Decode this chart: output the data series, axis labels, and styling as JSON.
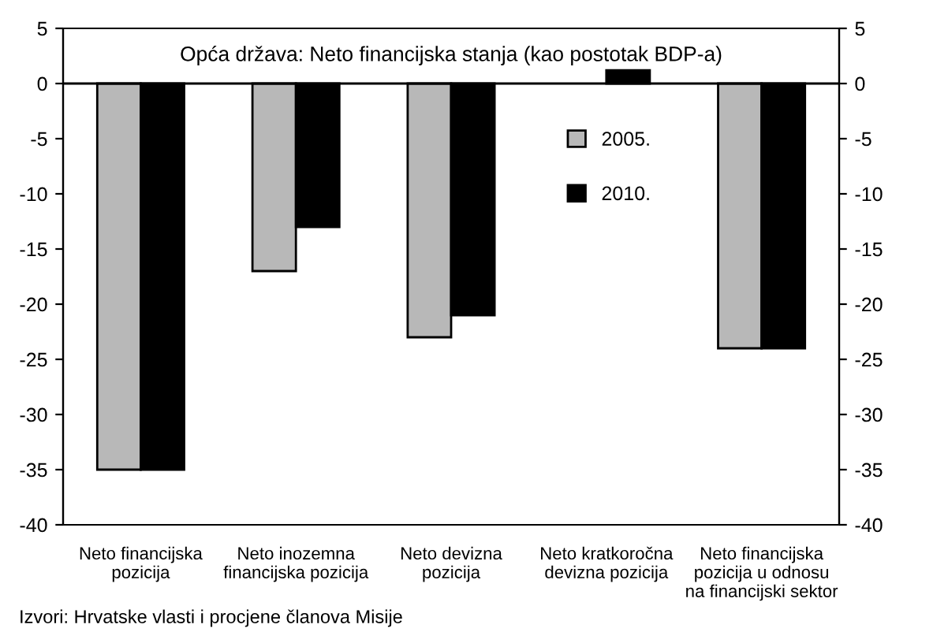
{
  "chart_data": {
    "type": "bar",
    "title": "Opća država: Neto financijska stanja (kao postotak BDP-a)",
    "categories": [
      "Neto financijska\npozicija",
      "Neto inozemna\nfinancijska pozicija",
      "Neto devizna\npozicija",
      "Neto kratkoročna\ndevizna pozicija",
      "Neto financijska\npozicija u odnosu\nna financijski sektor"
    ],
    "series": [
      {
        "name": "2005.",
        "color": "#b8b8b8",
        "values": [
          -35,
          -17,
          -23,
          null,
          -24
        ]
      },
      {
        "name": "2010.",
        "color": "#000000",
        "values": [
          -35,
          -13,
          -21,
          1.2,
          -24
        ]
      }
    ],
    "ylim": [
      -40,
      5
    ],
    "yticks": [
      -40,
      -35,
      -30,
      -25,
      -20,
      -15,
      -10,
      -5,
      0,
      5
    ],
    "y2lim": [
      -40,
      5
    ],
    "y2ticks": [
      -40,
      -35,
      -30,
      -25,
      -20,
      -15,
      -10,
      -5,
      0,
      5
    ],
    "ref_lines": [
      {
        "axis": "y",
        "value": 0,
        "color": "#000000"
      }
    ],
    "legend": "right",
    "annotations": [
      "Izvori: Hrvatske vlasti i procjene članova Misije"
    ]
  }
}
